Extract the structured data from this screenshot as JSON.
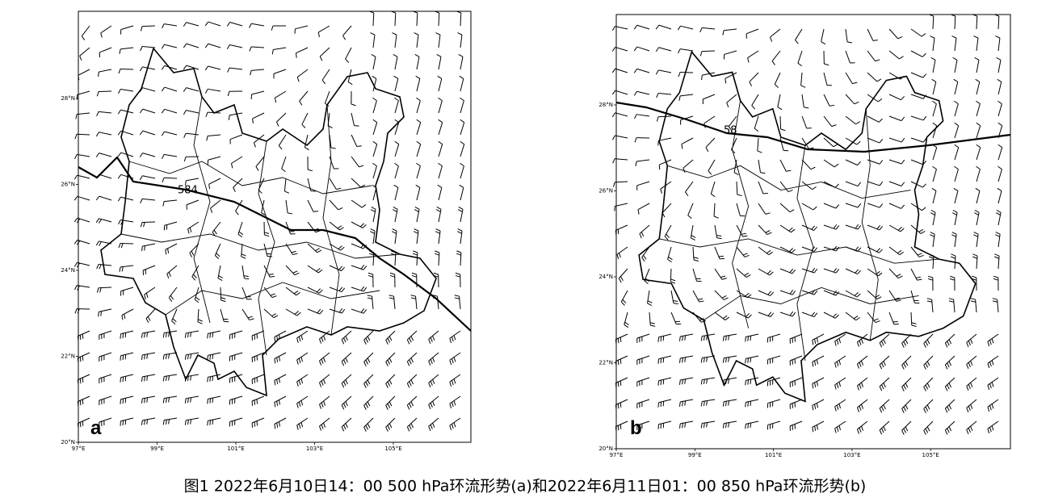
{
  "figure": {
    "panels": [
      {
        "label": "a",
        "contour_label": "584",
        "yticks": [
          "28°N",
          "26°N",
          "24°N",
          "22°N",
          "20°N"
        ],
        "xticks": [
          "97°E",
          "99°E",
          "101°E",
          "103°E",
          "105°E"
        ]
      },
      {
        "label": "b",
        "contour_label": "58",
        "yticks": [
          "28°N",
          "26°N",
          "24°N",
          "22°N",
          "20°N"
        ],
        "xticks": [
          "97°E",
          "99°E",
          "101°E",
          "103°E",
          "105°E"
        ]
      }
    ],
    "caption": "图1 2022年6月10日14：00 500 hPa环流形势(a)和2022年6月11日01：00 850 hPa环流形势(b)"
  }
}
